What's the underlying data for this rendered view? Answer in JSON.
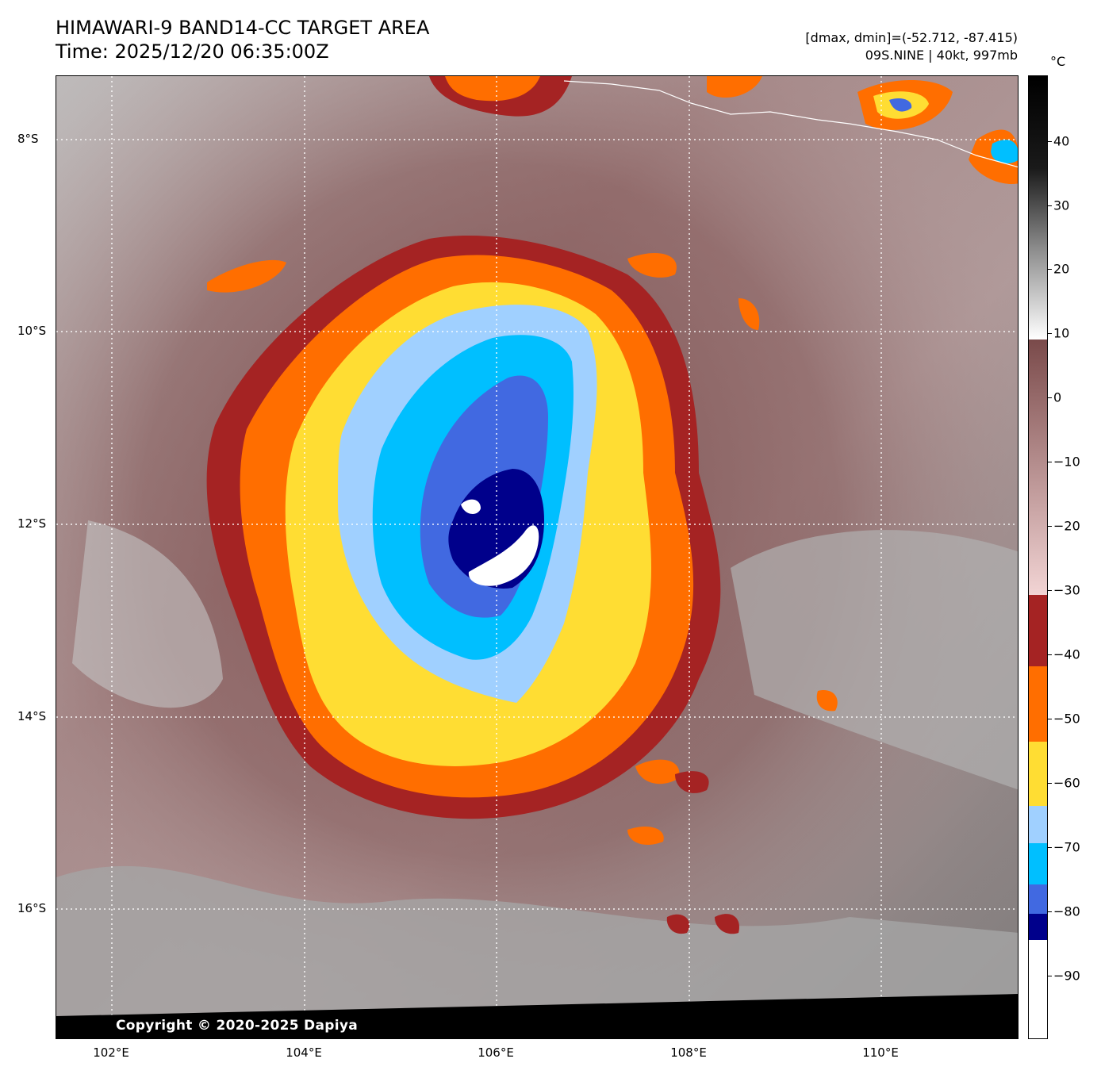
{
  "header": {
    "title_line1": "HIMAWARI-9 BAND14-CC TARGET AREA",
    "title_line2": "Time: 2025/12/20 06:35:00Z",
    "info_line1": "[dmax, dmin]=(-52.712, -87.415)",
    "info_line2": "09S.NINE | 40kt, 997mb"
  },
  "map": {
    "lat_labels": [
      "8°S",
      "10°S",
      "12°S",
      "14°S",
      "16°S"
    ],
    "lon_labels": [
      "102°E",
      "104°E",
      "106°E",
      "108°E",
      "110°E"
    ],
    "copyright": "Copyright © 2020-2025 Dapiya"
  },
  "colorbar": {
    "unit": "°C",
    "tick_labels": [
      "40",
      "30",
      "20",
      "10",
      "0",
      "−10",
      "−20",
      "−30",
      "−40",
      "−50",
      "−60",
      "−70",
      "−80",
      "−90"
    ],
    "colors": {
      "warm_high": "#000000",
      "warm_mid": "#8a8a8a",
      "warm_low": "#ffffff",
      "cloud_brown": "#7a4a4a",
      "cloud_pink": "#f2d4d4",
      "dark_red": "#a52323",
      "orange": "#ff6e00",
      "yellow": "#ffdd33",
      "light_blue": "#a0d0ff",
      "cyan": "#00bfff",
      "royal_blue": "#4169e1",
      "navy": "#00008b",
      "coldest": "#ffffff"
    }
  }
}
